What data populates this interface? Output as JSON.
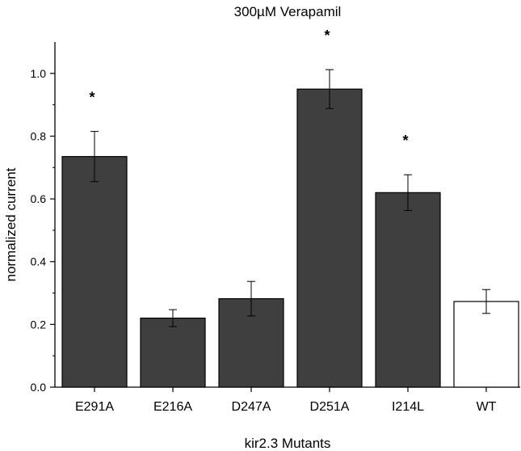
{
  "chart_data": {
    "type": "bar",
    "title": "300µM Verapamil",
    "xlabel": "kir2.3 Mutants",
    "ylabel": "normalized current",
    "categories": [
      "E291A",
      "E216A",
      "D247A",
      "D251A",
      "I214L",
      "WT"
    ],
    "values": [
      0.735,
      0.22,
      0.282,
      0.95,
      0.62,
      0.273
    ],
    "errors": [
      0.08,
      0.027,
      0.055,
      0.062,
      0.057,
      0.038
    ],
    "significance": [
      "*",
      "",
      "",
      "*",
      "*",
      ""
    ],
    "bar_fill_colors": [
      "#3f3f3f",
      "#3f3f3f",
      "#3f3f3f",
      "#3f3f3f",
      "#3f3f3f",
      "#ffffff"
    ],
    "bar_stroke_color": "#000000",
    "ylim": [
      0,
      1.1
    ],
    "yticks": [
      "0.0",
      "0.2",
      "0.4",
      "0.6",
      "0.8",
      "1.0"
    ],
    "grid": false,
    "legend": "none"
  }
}
